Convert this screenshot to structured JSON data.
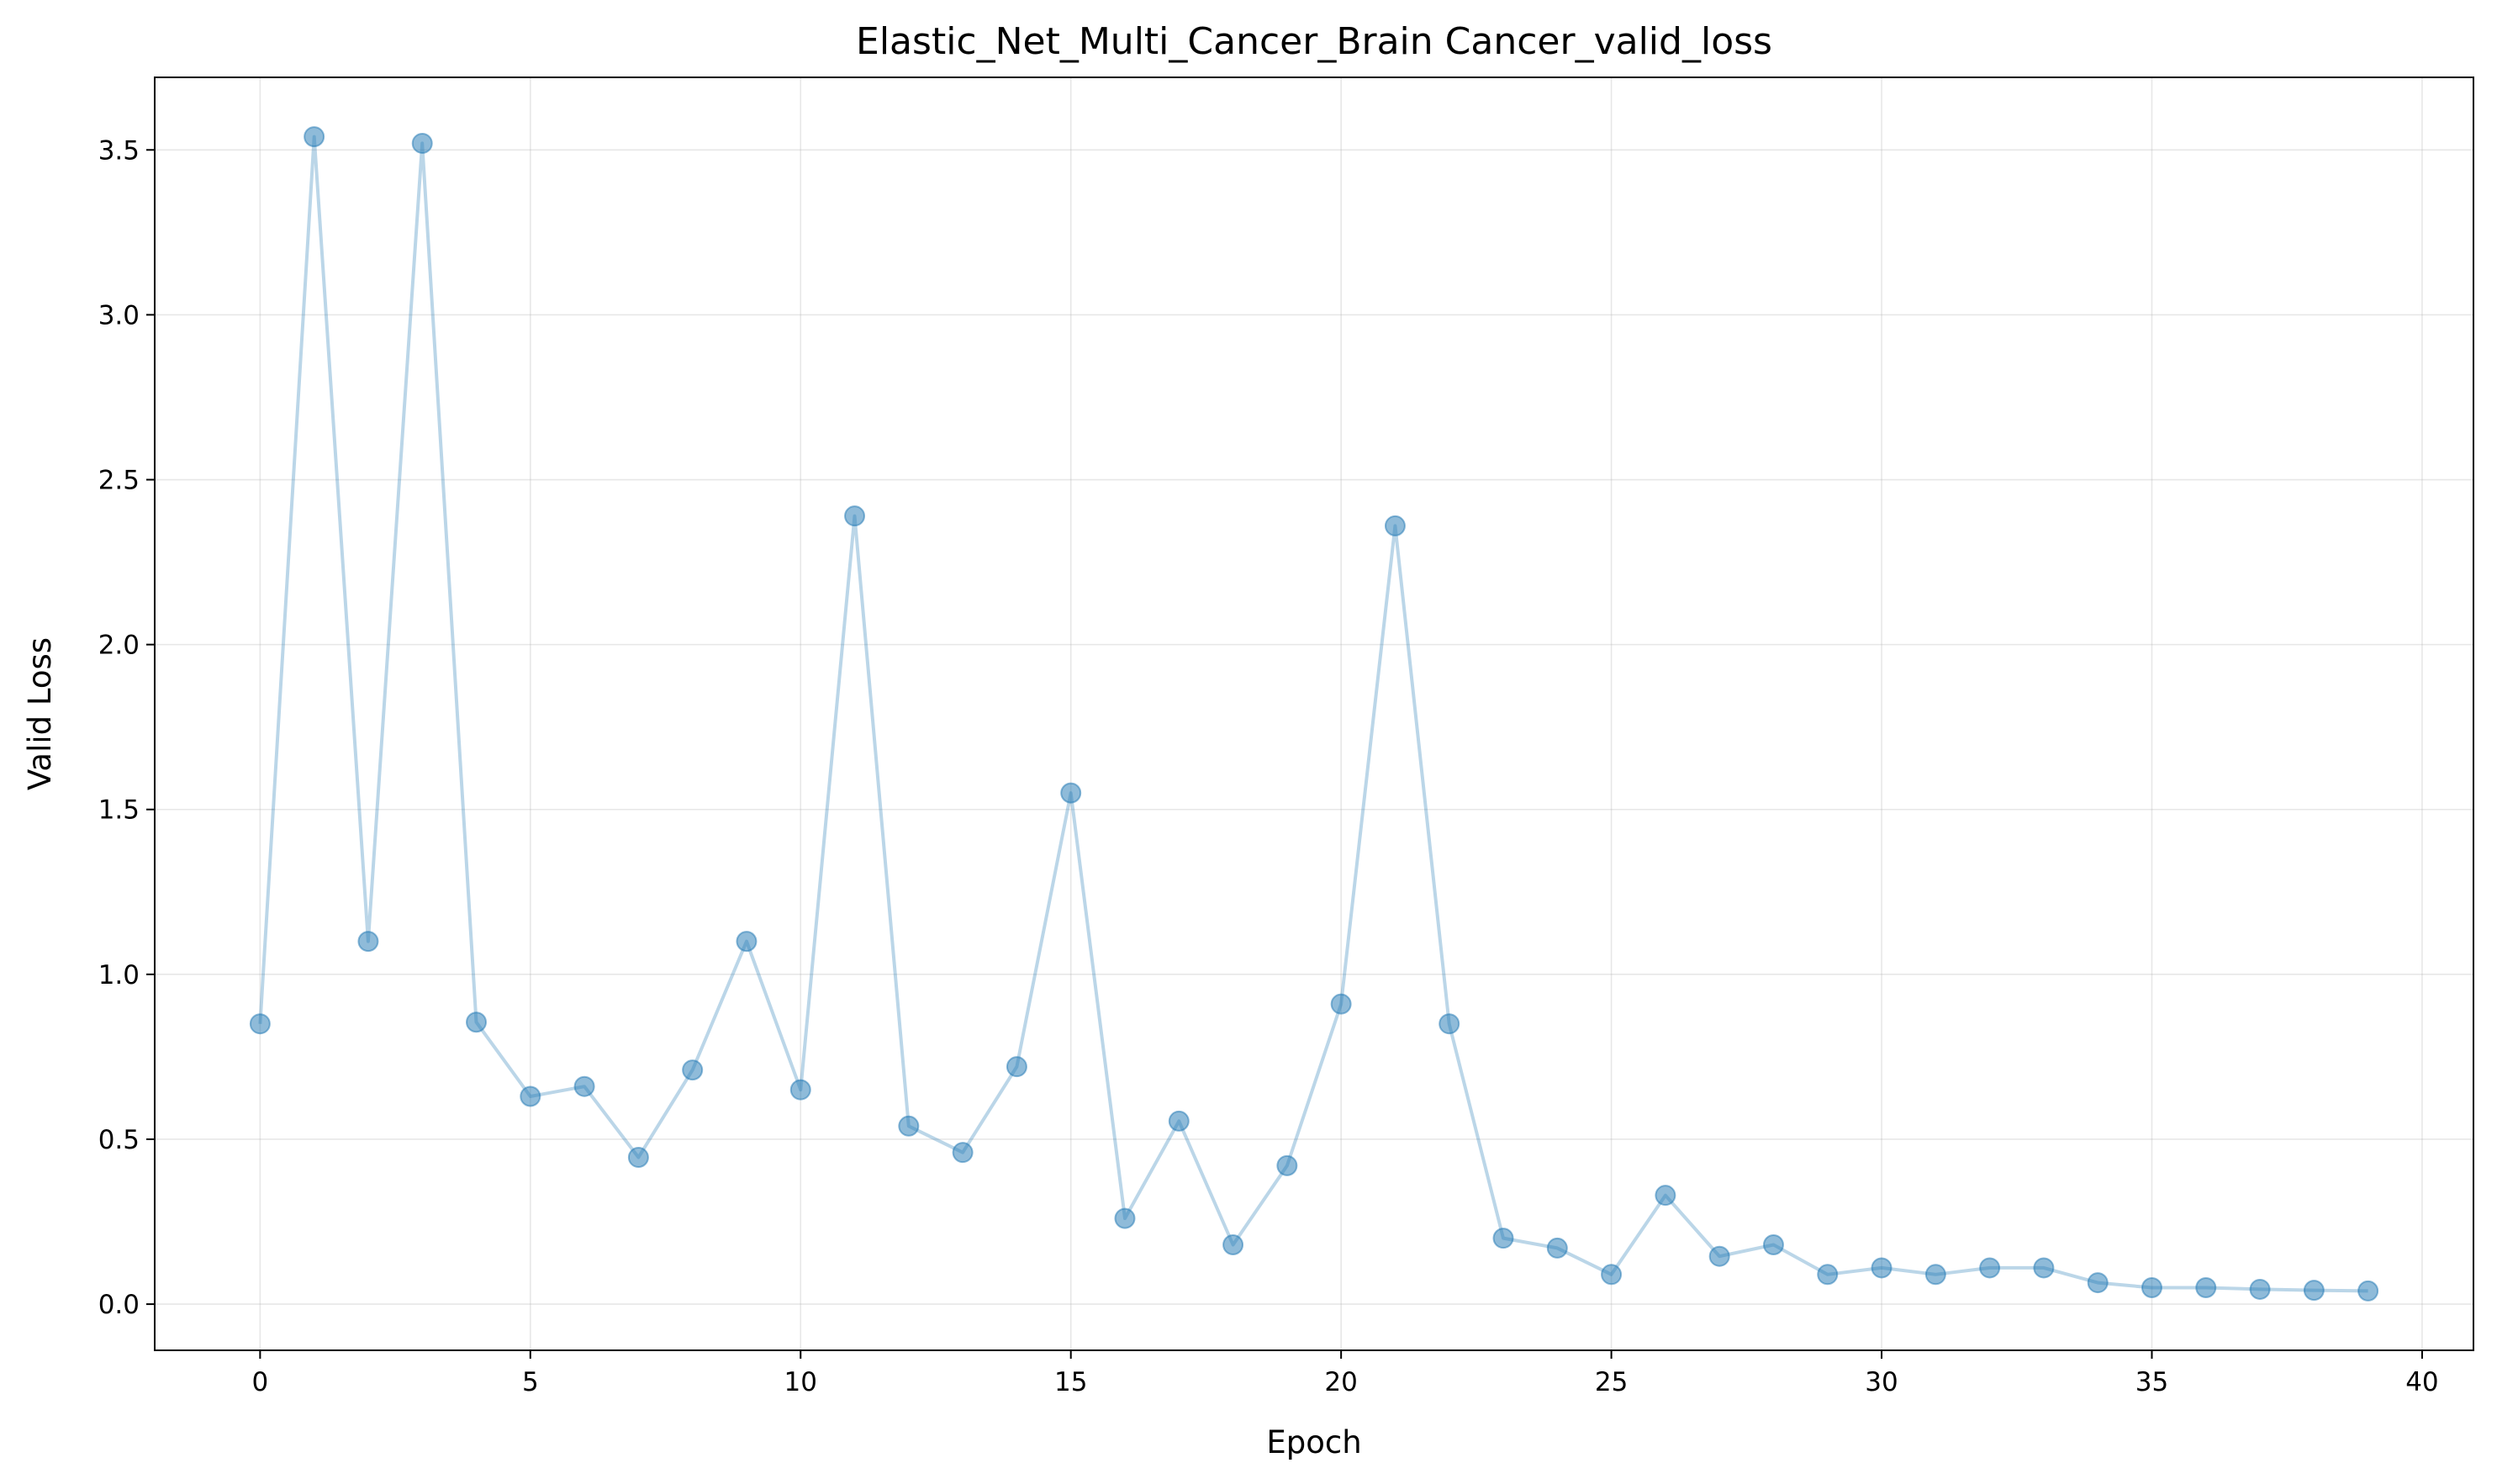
{
  "chart_data": {
    "type": "line",
    "title": "Elastic_Net_Multi_Cancer_Brain Cancer_valid_loss",
    "xlabel": "Epoch",
    "ylabel": "Valid Loss",
    "xlim": [
      -1.95,
      40.95
    ],
    "ylim": [
      -0.14,
      3.72
    ],
    "xticks": [
      0,
      5,
      10,
      15,
      20,
      25,
      30,
      35,
      40
    ],
    "xtick_labels": [
      "0",
      "5",
      "10",
      "15",
      "20",
      "25",
      "30",
      "35",
      "40"
    ],
    "yticks": [
      0.0,
      0.5,
      1.0,
      1.5,
      2.0,
      2.5,
      3.0,
      3.5
    ],
    "ytick_labels": [
      "0.0",
      "0.5",
      "1.0",
      "1.5",
      "2.0",
      "2.5",
      "3.0",
      "3.5"
    ],
    "grid": true,
    "legend": "none",
    "series": [
      {
        "color": "#1f77b4",
        "marker": "circle",
        "x": [
          0,
          1,
          2,
          3,
          4,
          5,
          6,
          7,
          8,
          9,
          10,
          11,
          12,
          13,
          14,
          15,
          16,
          17,
          18,
          19,
          20,
          21,
          22,
          23,
          24,
          25,
          26,
          27,
          28,
          29,
          30,
          31,
          32,
          33,
          34,
          35,
          36,
          37,
          38,
          39
        ],
        "y": [
          0.85,
          3.54,
          1.1,
          3.52,
          0.855,
          0.63,
          0.66,
          0.445,
          0.71,
          1.1,
          0.65,
          2.39,
          0.54,
          0.46,
          0.72,
          1.55,
          0.26,
          0.555,
          0.18,
          0.42,
          0.91,
          2.36,
          0.85,
          0.2,
          0.17,
          0.09,
          0.33,
          0.145,
          0.18,
          0.09,
          0.11,
          0.09,
          0.11,
          0.11,
          0.065,
          0.05,
          0.05,
          0.045,
          0.042,
          0.04
        ]
      }
    ]
  }
}
